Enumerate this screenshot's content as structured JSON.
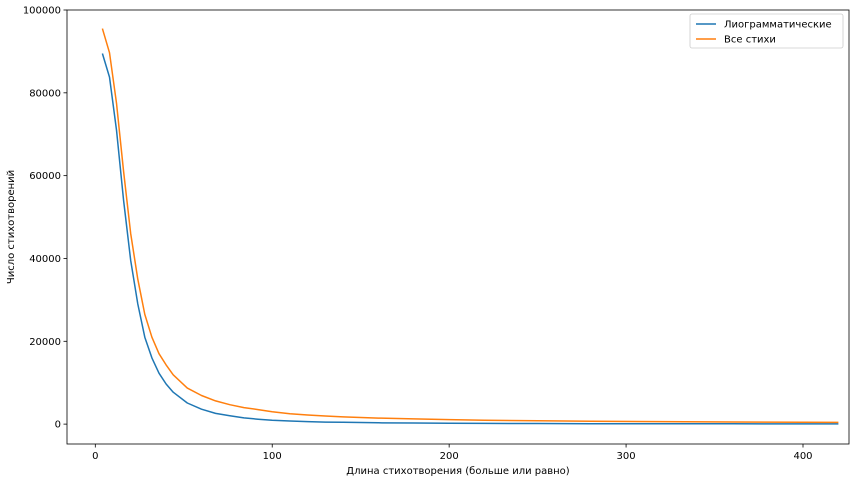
{
  "chart_data": {
    "type": "line",
    "title": "",
    "xlabel": "Длина стихотворения (больше или равно)",
    "ylabel": "Число стихотворений",
    "xlim": [
      -16,
      426
    ],
    "ylim": [
      -4800,
      100000
    ],
    "xticks": [
      0,
      100,
      200,
      300,
      400
    ],
    "yticks": [
      0,
      20000,
      40000,
      60000,
      80000,
      100000
    ],
    "grid": false,
    "legend_position": "top-right",
    "series": [
      {
        "name": "Лиограмматические",
        "color": "#1f77b4",
        "x": [
          4,
          8,
          12,
          16,
          20,
          24,
          28,
          32,
          36,
          40,
          44,
          52,
          60,
          68,
          76,
          84,
          92,
          100,
          110,
          120,
          130,
          140,
          150,
          160,
          180,
          200,
          220,
          250,
          280,
          320,
          360,
          400,
          420
        ],
        "y": [
          89500,
          83800,
          71000,
          54000,
          39500,
          29000,
          21000,
          16000,
          12300,
          9700,
          7700,
          5100,
          3600,
          2600,
          2000,
          1500,
          1200,
          950,
          750,
          600,
          500,
          430,
          380,
          330,
          270,
          220,
          180,
          140,
          110,
          90,
          75,
          60,
          50
        ]
      },
      {
        "name": "Все стихи",
        "color": "#ff7f0e",
        "x": [
          4,
          8,
          12,
          16,
          20,
          24,
          28,
          32,
          36,
          40,
          44,
          52,
          60,
          68,
          76,
          84,
          92,
          100,
          110,
          120,
          130,
          140,
          150,
          160,
          180,
          200,
          220,
          250,
          280,
          320,
          360,
          400,
          420
        ],
        "y": [
          95500,
          89700,
          77500,
          61000,
          46000,
          35000,
          26500,
          21000,
          17000,
          14300,
          11900,
          8700,
          6900,
          5600,
          4700,
          4000,
          3500,
          3000,
          2500,
          2200,
          1950,
          1750,
          1600,
          1450,
          1250,
          1100,
          950,
          800,
          700,
          600,
          520,
          450,
          420
        ]
      }
    ]
  }
}
